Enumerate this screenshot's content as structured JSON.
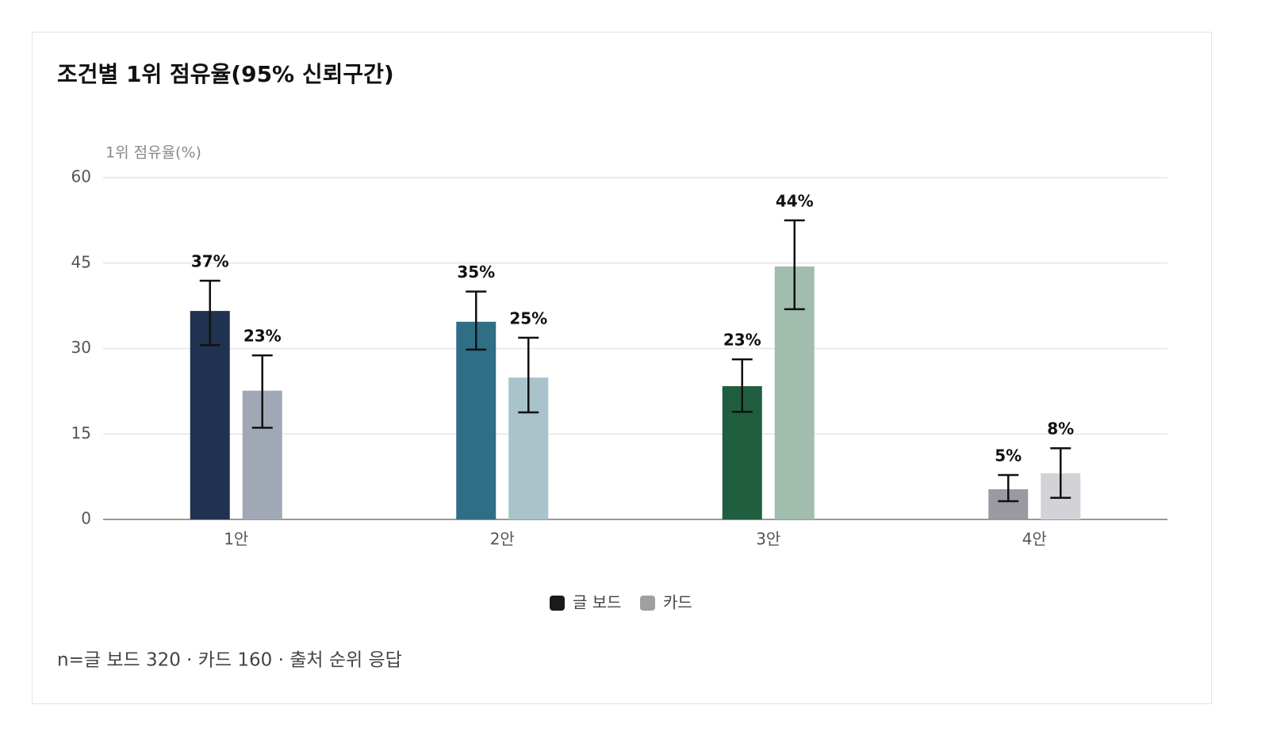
{
  "chart_data": {
    "type": "bar",
    "title": "조건별 1위 점유율(95% 신뢰구간)",
    "y_label": "1위 점유율(%)",
    "footnote": "n=글 보드 320 · 카드 160 · 출처 순위 응답",
    "categories": [
      "1안",
      "2안",
      "3안",
      "4안"
    ],
    "series": [
      {
        "name": "글 보드",
        "color": "#1a1a1a",
        "colors": [
          "#1f3350",
          "#2e6f86",
          "#1f5e3f",
          "#9a9aa5"
        ],
        "values": [
          36.6,
          34.7,
          23.4,
          5.3
        ],
        "value_labels": [
          "37%",
          "35%",
          "23%",
          "5%"
        ],
        "ci_low": [
          30.6,
          29.8,
          18.9,
          3.2
        ],
        "ci_high": [
          41.9,
          40.0,
          28.1,
          7.8
        ]
      },
      {
        "name": "카드",
        "color": "#a0a0a0",
        "colors": [
          "#a0a8b5",
          "#a9c3cb",
          "#a0bdad",
          "#d2d2d7"
        ],
        "values": [
          22.6,
          24.9,
          44.4,
          8.1
        ],
        "value_labels": [
          "23%",
          "25%",
          "44%",
          "8%"
        ],
        "ci_low": [
          16.1,
          18.8,
          36.9,
          3.8
        ],
        "ci_high": [
          28.8,
          31.9,
          52.5,
          12.5
        ]
      }
    ],
    "ylim": [
      0,
      60
    ],
    "yticks": [
      0,
      15,
      30,
      45,
      60
    ],
    "grid": true,
    "legend": "bottom"
  }
}
